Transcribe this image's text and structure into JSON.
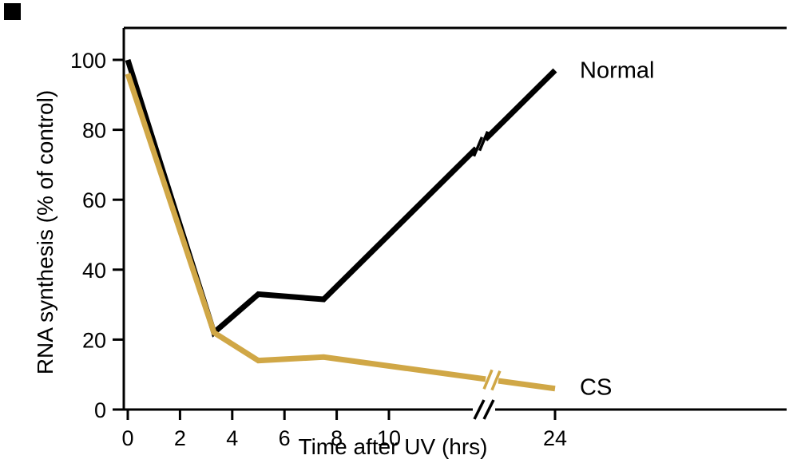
{
  "figure": {
    "background": "#ffffff"
  },
  "chart_data": {
    "type": "line",
    "title": "",
    "xlabel": "Time after UV (hrs)",
    "ylabel": "RNA synthesis (% of control)",
    "x_ticks": [
      0,
      2,
      4,
      6,
      8,
      10,
      24
    ],
    "y_ticks": [
      0,
      20,
      40,
      60,
      80,
      100
    ],
    "xlim_shown": [
      0,
      24
    ],
    "ylim": [
      0,
      100
    ],
    "grid": false,
    "legend": "inline-labels",
    "x_axis_break": {
      "between": [
        10,
        24
      ]
    },
    "line_breaks_on_series": true,
    "series": [
      {
        "name": "Normal",
        "color": "#000000",
        "points": [
          [
            0,
            100
          ],
          [
            3.3,
            22
          ],
          [
            5,
            33
          ],
          [
            7.5,
            31.5
          ],
          [
            24,
            97
          ]
        ]
      },
      {
        "name": "CS",
        "color": "#d0a746",
        "points": [
          [
            0,
            96
          ],
          [
            3.3,
            22
          ],
          [
            5,
            14
          ],
          [
            7.5,
            15
          ],
          [
            24,
            6
          ]
        ]
      }
    ]
  }
}
